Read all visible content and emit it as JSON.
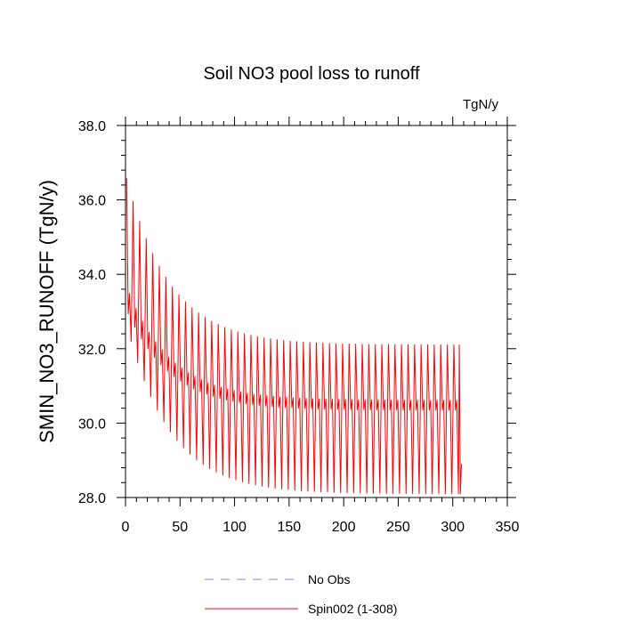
{
  "chart_data": {
    "type": "line",
    "title": "Soil NO3 pool loss to runoff",
    "units_label": "TgN/y",
    "ylabel": "SMIN_NO3_RUNOFF  (TgN/y)",
    "xlabel": "",
    "xlim": [
      0,
      350
    ],
    "ylim": [
      28.0,
      38.0
    ],
    "x_ticks": [
      0,
      50,
      100,
      150,
      200,
      250,
      300,
      350
    ],
    "x_tick_labels": [
      "0",
      "50",
      "100",
      "150",
      "200",
      "250",
      "300",
      "350"
    ],
    "y_ticks": [
      28.0,
      30.0,
      32.0,
      34.0,
      36.0,
      38.0
    ],
    "y_tick_labels": [
      "28.0",
      "30.0",
      "32.0",
      "34.0",
      "36.0",
      "38.0"
    ],
    "colors": {
      "spin": "#ff0000",
      "obs": "#8080ff"
    },
    "series": [
      {
        "name": "Spin002 (1-308)",
        "style": "solid",
        "x_range": [
          1,
          308
        ],
        "cycle_length": 6,
        "peak_start": 36.7,
        "peak_end": 32.1,
        "trough_start": 32.3,
        "trough_end": 28.1,
        "mid_start": 33.0,
        "mid_end": 30.35,
        "decay_years": 40,
        "final_value": 28.9
      }
    ],
    "legend": [
      {
        "label": "No Obs",
        "style": "dashed"
      },
      {
        "label": "Spin002 (1-308)",
        "style": "solid"
      }
    ]
  }
}
